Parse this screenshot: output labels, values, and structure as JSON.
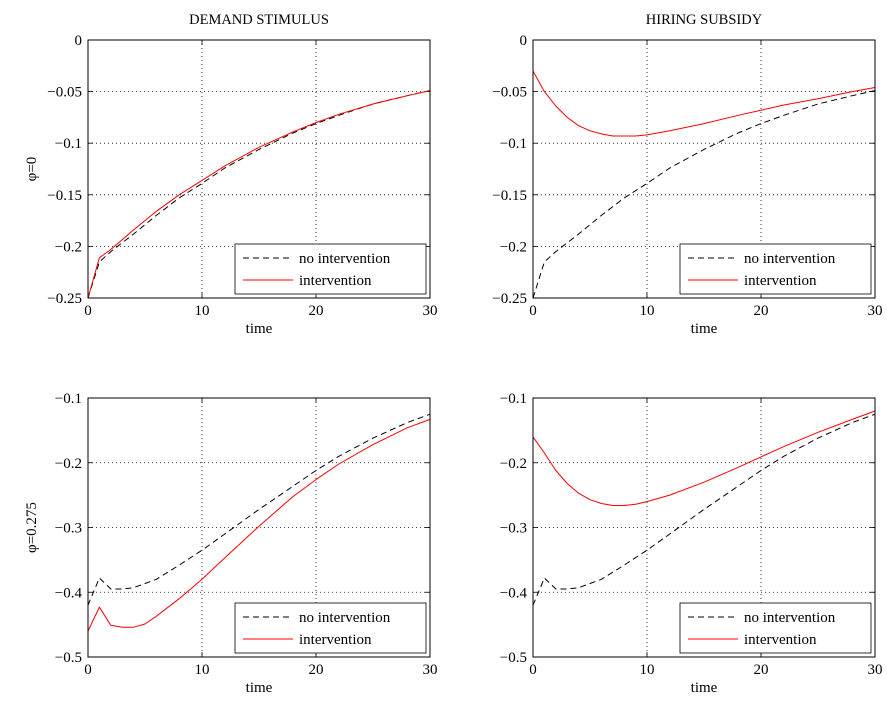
{
  "chart_data": [
    {
      "type": "line",
      "title": "DEMAND STIMULUS",
      "xlabel": "time",
      "ylabel": "φ=0",
      "xlim": [
        0,
        30
      ],
      "ylim": [
        -0.25,
        0
      ],
      "xticks": [
        0,
        10,
        20,
        30
      ],
      "xtick_labels": [
        "0",
        "10",
        "20",
        "30"
      ],
      "yticks": [
        -0.25,
        -0.2,
        -0.15,
        -0.1,
        -0.05,
        0
      ],
      "ytick_labels": [
        "−0.25",
        "−0.2",
        "−0.15",
        "−0.1",
        "−0.05",
        "0"
      ],
      "grid": true,
      "legend": "bottom-right",
      "series": [
        {
          "name": "no intervention",
          "style": "dashed",
          "color": "#000000",
          "x": [
            0,
            1,
            2,
            4,
            6,
            8,
            10,
            12,
            15,
            18,
            20,
            22,
            25,
            28,
            30
          ],
          "y": [
            -0.25,
            -0.215,
            -0.205,
            -0.188,
            -0.17,
            -0.153,
            -0.139,
            -0.124,
            -0.106,
            -0.09,
            -0.081,
            -0.073,
            -0.062,
            -0.054,
            -0.049
          ]
        },
        {
          "name": "intervention",
          "style": "solid",
          "color": "#ff0000",
          "x": [
            0,
            1,
            2,
            4,
            6,
            8,
            10,
            12,
            15,
            18,
            20,
            22,
            25,
            28,
            30
          ],
          "y": [
            -0.25,
            -0.211,
            -0.203,
            -0.184,
            -0.166,
            -0.15,
            -0.136,
            -0.122,
            -0.104,
            -0.089,
            -0.08,
            -0.072,
            -0.062,
            -0.054,
            -0.049
          ]
        }
      ]
    },
    {
      "type": "line",
      "title": "HIRING SUBSIDY",
      "xlabel": "time",
      "ylabel": "",
      "xlim": [
        0,
        30
      ],
      "ylim": [
        -0.25,
        0
      ],
      "xticks": [
        0,
        10,
        20,
        30
      ],
      "xtick_labels": [
        "0",
        "10",
        "20",
        "30"
      ],
      "yticks": [
        -0.25,
        -0.2,
        -0.15,
        -0.1,
        -0.05,
        0
      ],
      "ytick_labels": [
        "−0.25",
        "−0.2",
        "−0.15",
        "−0.1",
        "−0.05",
        "0"
      ],
      "grid": true,
      "legend": "bottom-right",
      "series": [
        {
          "name": "no intervention",
          "style": "dashed",
          "color": "#000000",
          "x": [
            0,
            1,
            2,
            4,
            6,
            8,
            10,
            12,
            15,
            18,
            20,
            22,
            25,
            28,
            30
          ],
          "y": [
            -0.25,
            -0.215,
            -0.205,
            -0.188,
            -0.17,
            -0.153,
            -0.139,
            -0.124,
            -0.106,
            -0.09,
            -0.081,
            -0.073,
            -0.062,
            -0.054,
            -0.049
          ]
        },
        {
          "name": "intervention",
          "style": "solid",
          "color": "#ff0000",
          "x": [
            0,
            1,
            2,
            3,
            4,
            5,
            6,
            7,
            8,
            9,
            10,
            12,
            15,
            18,
            20,
            22,
            25,
            28,
            30
          ],
          "y": [
            -0.03,
            -0.05,
            -0.064,
            -0.075,
            -0.083,
            -0.088,
            -0.091,
            -0.093,
            -0.093,
            -0.093,
            -0.092,
            -0.088,
            -0.081,
            -0.073,
            -0.068,
            -0.063,
            -0.057,
            -0.05,
            -0.046
          ]
        }
      ]
    },
    {
      "type": "line",
      "title": "",
      "xlabel": "time",
      "ylabel": "φ=0.275",
      "xlim": [
        0,
        30
      ],
      "ylim": [
        -0.5,
        -0.1
      ],
      "xticks": [
        0,
        10,
        20,
        30
      ],
      "xtick_labels": [
        "0",
        "10",
        "20",
        "30"
      ],
      "yticks": [
        -0.5,
        -0.4,
        -0.3,
        -0.2,
        -0.1
      ],
      "ytick_labels": [
        "−0.5",
        "−0.4",
        "−0.3",
        "−0.2",
        "−0.1"
      ],
      "grid": true,
      "legend": "bottom-right",
      "series": [
        {
          "name": "no intervention",
          "style": "dashed",
          "color": "#000000",
          "x": [
            0,
            1,
            2,
            3,
            4,
            6,
            8,
            10,
            12,
            15,
            18,
            20,
            22,
            25,
            28,
            30
          ],
          "y": [
            -0.42,
            -0.378,
            -0.395,
            -0.395,
            -0.393,
            -0.38,
            -0.358,
            -0.335,
            -0.31,
            -0.272,
            -0.236,
            -0.212,
            -0.19,
            -0.162,
            -0.138,
            -0.125
          ]
        },
        {
          "name": "intervention",
          "style": "solid",
          "color": "#ff0000",
          "x": [
            0,
            1,
            2,
            3,
            4,
            5,
            6,
            8,
            10,
            12,
            15,
            18,
            20,
            22,
            25,
            28,
            30
          ],
          "y": [
            -0.46,
            -0.423,
            -0.451,
            -0.454,
            -0.454,
            -0.449,
            -0.437,
            -0.41,
            -0.38,
            -0.347,
            -0.298,
            -0.252,
            -0.226,
            -0.202,
            -0.172,
            -0.146,
            -0.133
          ]
        }
      ]
    },
    {
      "type": "line",
      "title": "",
      "xlabel": "time",
      "ylabel": "",
      "xlim": [
        0,
        30
      ],
      "ylim": [
        -0.5,
        -0.1
      ],
      "xticks": [
        0,
        10,
        20,
        30
      ],
      "xtick_labels": [
        "0",
        "10",
        "20",
        "30"
      ],
      "yticks": [
        -0.5,
        -0.4,
        -0.3,
        -0.2,
        -0.1
      ],
      "ytick_labels": [
        "−0.5",
        "−0.4",
        "−0.3",
        "−0.2",
        "−0.1"
      ],
      "grid": true,
      "legend": "bottom-right",
      "series": [
        {
          "name": "no intervention",
          "style": "dashed",
          "color": "#000000",
          "x": [
            0,
            1,
            2,
            3,
            4,
            6,
            8,
            10,
            12,
            15,
            18,
            20,
            22,
            25,
            28,
            30
          ],
          "y": [
            -0.42,
            -0.378,
            -0.395,
            -0.395,
            -0.393,
            -0.38,
            -0.358,
            -0.335,
            -0.31,
            -0.272,
            -0.236,
            -0.212,
            -0.19,
            -0.162,
            -0.138,
            -0.125
          ]
        },
        {
          "name": "intervention",
          "style": "solid",
          "color": "#ff0000",
          "x": [
            0,
            1,
            2,
            3,
            4,
            5,
            6,
            7,
            8,
            9,
            10,
            12,
            15,
            18,
            20,
            22,
            25,
            28,
            30
          ],
          "y": [
            -0.16,
            -0.185,
            -0.212,
            -0.232,
            -0.247,
            -0.257,
            -0.263,
            -0.266,
            -0.266,
            -0.264,
            -0.26,
            -0.25,
            -0.23,
            -0.207,
            -0.191,
            -0.175,
            -0.153,
            -0.133,
            -0.12
          ]
        }
      ]
    }
  ]
}
